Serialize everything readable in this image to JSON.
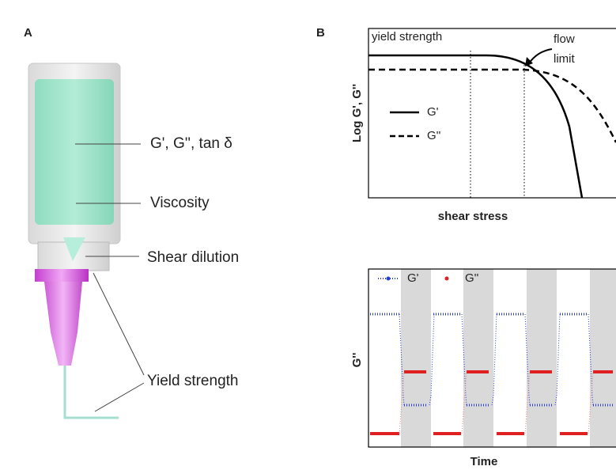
{
  "panel_a": {
    "label": "A",
    "annotations": [
      "G', G'', tan δ",
      "Viscosity",
      "Shear dilution",
      "Yield strength"
    ]
  },
  "panel_b": {
    "label": "B",
    "top_plot": {
      "annotation_left": "yield strength",
      "annotation_right": [
        "flow",
        "limit"
      ],
      "y_label": "Log G', G''",
      "x_label": "shear stress",
      "legend": [
        "G'",
        "G''"
      ]
    },
    "bottom_plot": {
      "legend": [
        "G'",
        "G''"
      ],
      "y_label": "G''",
      "x_label": "Time"
    }
  }
}
